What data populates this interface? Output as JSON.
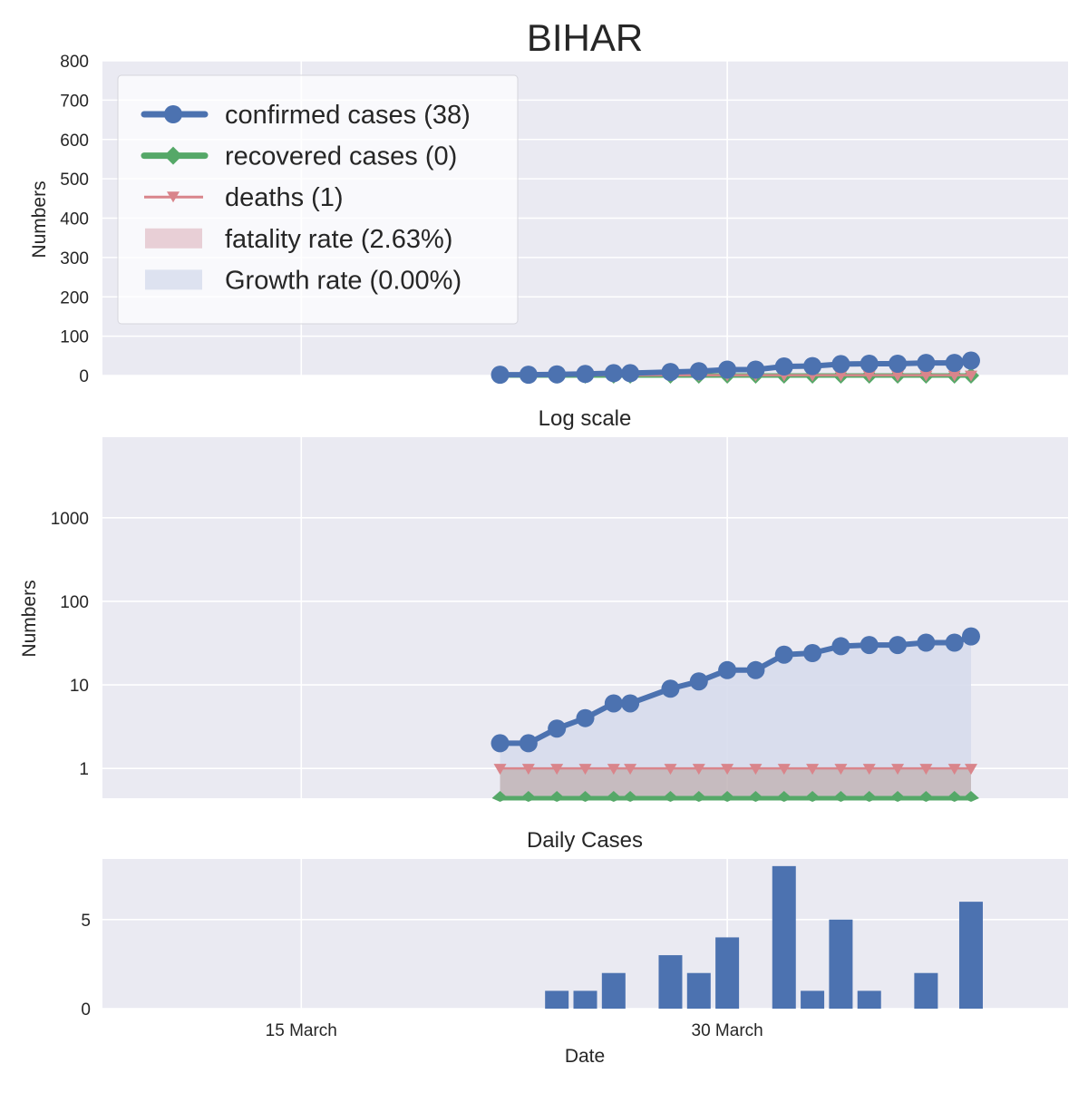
{
  "title": "BIHAR",
  "chart_data": [
    {
      "type": "line",
      "title": "",
      "xlabel": "",
      "ylabel": "Numbers",
      "ylim": [
        0,
        800
      ],
      "yticks": [
        0,
        100,
        200,
        300,
        400,
        500,
        600,
        700,
        800
      ],
      "xlim": [
        "2020-03-08",
        "2020-04-11"
      ],
      "grid": true,
      "legend": {
        "placement": "top-left",
        "entries": [
          {
            "label": "confirmed cases (38)",
            "color": "#4c72b0",
            "marker": "circle"
          },
          {
            "label": "recovered cases (0)",
            "color": "#55a868",
            "marker": "diamond"
          },
          {
            "label": "deaths (1)",
            "color": "#dd8452",
            "marker": "triangle-down"
          },
          {
            "label": "fatality rate (2.63%)",
            "color": "#e8cfd6",
            "marker": "patch"
          },
          {
            "label": "Growth rate (0.00%)",
            "color": "#dde2f0",
            "marker": "patch"
          }
        ]
      },
      "x": [
        "2020-03-22",
        "2020-03-23",
        "2020-03-24",
        "2020-03-25",
        "2020-03-26",
        "2020-03-26T14",
        "2020-03-28",
        "2020-03-29",
        "2020-03-30",
        "2020-03-31",
        "2020-04-01",
        "2020-04-02",
        "2020-04-03",
        "2020-04-04",
        "2020-04-05",
        "2020-04-06",
        "2020-04-07",
        "2020-04-07T14"
      ],
      "series": [
        {
          "name": "confirmed cases (38)",
          "color": "#4c72b0",
          "values": [
            2,
            2,
            3,
            4,
            6,
            6,
            9,
            11,
            15,
            15,
            23,
            24,
            29,
            30,
            30,
            32,
            32,
            38
          ]
        },
        {
          "name": "recovered cases (0)",
          "color": "#55a868",
          "values": [
            0,
            0,
            0,
            0,
            0,
            0,
            0,
            0,
            0,
            0,
            0,
            0,
            0,
            0,
            0,
            0,
            0,
            0
          ]
        },
        {
          "name": "deaths (1)",
          "color": "#d9858b",
          "values": [
            1,
            1,
            1,
            1,
            1,
            1,
            1,
            1,
            1,
            1,
            1,
            1,
            1,
            1,
            1,
            1,
            1,
            1
          ]
        }
      ]
    },
    {
      "type": "line",
      "title": "Log scale",
      "xlabel": "",
      "ylabel": "Numbers",
      "yscale": "log",
      "yticks": [
        1,
        10,
        100,
        1000
      ],
      "grid": true
    },
    {
      "type": "bar",
      "title": "Daily Cases",
      "xlabel": "Date",
      "ylabel": "",
      "ylim": [
        0,
        8.4
      ],
      "yticks": [
        0,
        5
      ],
      "xticks": [
        {
          "date": "2020-03-15",
          "label": "15 March"
        },
        {
          "date": "2020-03-30",
          "label": "30 March"
        }
      ],
      "color": "#4c72b0",
      "x": [
        "2020-03-24",
        "2020-03-25",
        "2020-03-26",
        "2020-03-28",
        "2020-03-29",
        "2020-03-30",
        "2020-04-01",
        "2020-04-02",
        "2020-04-03",
        "2020-04-04",
        "2020-04-06",
        "2020-04-07T14"
      ],
      "values": [
        1,
        1,
        2,
        3,
        2,
        4,
        8,
        1,
        5,
        1,
        2,
        6
      ],
      "grid": true
    }
  ]
}
